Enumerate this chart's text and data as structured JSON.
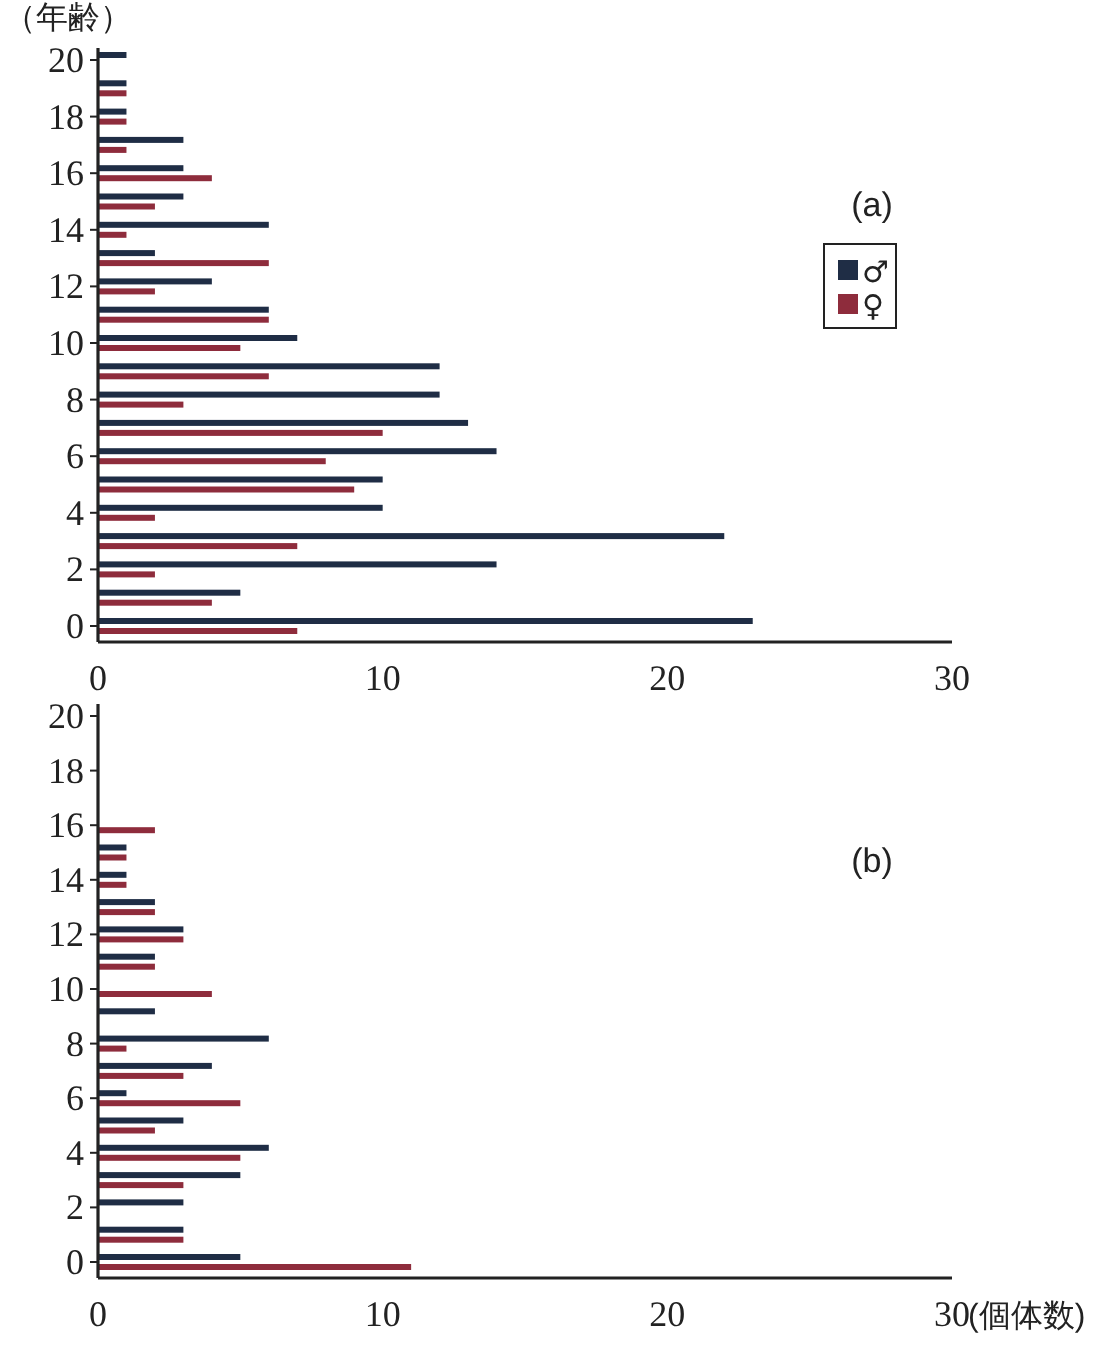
{
  "chart_data": [
    {
      "type": "bar",
      "orientation": "horizontal",
      "title": "(a)",
      "ylabel": "（年齢）",
      "categories": [
        "20",
        null,
        "18",
        null,
        "16",
        null,
        "14",
        null,
        "12",
        null,
        "10",
        null,
        "8",
        null,
        "6",
        null,
        "4",
        null,
        "2",
        null,
        "0"
      ],
      "series": [
        {
          "name": "♂",
          "color": "#1f2d45",
          "values": [
            1,
            1,
            1,
            3,
            3,
            3,
            6,
            2,
            4,
            6,
            7,
            12,
            12,
            13,
            14,
            10,
            10,
            22,
            14,
            5,
            23
          ]
        },
        {
          "name": "♀",
          "color": "#8e2c3c",
          "values": [
            0,
            1,
            1,
            1,
            4,
            2,
            1,
            6,
            2,
            6,
            5,
            6,
            3,
            10,
            8,
            9,
            2,
            7,
            2,
            4,
            7
          ]
        }
      ],
      "xlim": [
        0,
        30
      ],
      "xticks": [
        0,
        10,
        20,
        30
      ],
      "legend": "top right"
    },
    {
      "type": "bar",
      "orientation": "horizontal",
      "title": "(b)",
      "xlabel": "(個体数)",
      "categories": [
        "20",
        null,
        "18",
        null,
        "16",
        null,
        "14",
        null,
        "12",
        null,
        "10",
        null,
        "8",
        null,
        "6",
        null,
        "4",
        null,
        "2",
        null,
        "0"
      ],
      "series": [
        {
          "color": "#1f2d45",
          "values": [
            0,
            0,
            0,
            0,
            0,
            1,
            1,
            2,
            3,
            2,
            0,
            2,
            6,
            4,
            1,
            3,
            6,
            5,
            3,
            3,
            5
          ]
        },
        {
          "color": "#8e2c3c",
          "values": [
            0,
            0,
            0,
            0,
            2,
            1,
            1,
            2,
            3,
            2,
            4,
            0,
            1,
            3,
            5,
            2,
            5,
            3,
            0,
            3,
            11
          ]
        }
      ],
      "xlim": [
        0,
        30
      ],
      "xticks": [
        0,
        10,
        20,
        30
      ]
    }
  ]
}
